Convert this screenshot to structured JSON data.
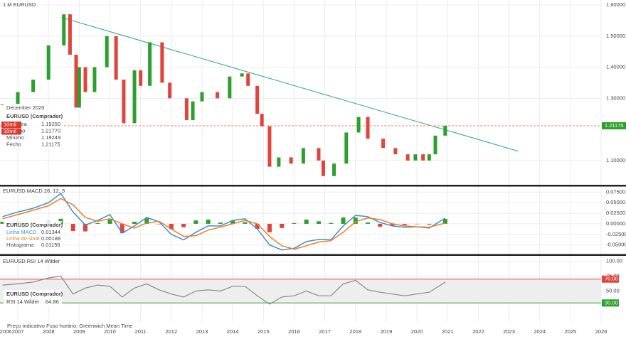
{
  "chart_data": [
    {
      "type": "candlestick",
      "title": "1 M  EURUSD",
      "x": [
        2006.5,
        2007.0,
        2007.5,
        2008.0,
        2008.5,
        2008.7,
        2008.9,
        2009.0,
        2009.2,
        2009.5,
        2009.9,
        2010.2,
        2010.45,
        2010.8,
        2011.0,
        2011.3,
        2011.7,
        2011.95,
        2012.5,
        2012.7,
        2013.0,
        2013.5,
        2013.9,
        2014.3,
        2014.5,
        2014.8,
        2014.95,
        2015.2,
        2015.5,
        2015.9,
        2016.3,
        2016.8,
        2016.95,
        2017.3,
        2017.7,
        2018.1,
        2018.4,
        2018.9,
        2019.3,
        2019.7,
        2019.95,
        2020.2,
        2020.4,
        2020.6,
        2020.92
      ],
      "values": [
        1.28,
        1.32,
        1.36,
        1.47,
        1.57,
        1.44,
        1.27,
        1.4,
        1.32,
        1.4,
        1.5,
        1.36,
        1.22,
        1.39,
        1.34,
        1.48,
        1.35,
        1.3,
        1.23,
        1.29,
        1.32,
        1.3,
        1.37,
        1.38,
        1.34,
        1.25,
        1.21,
        1.08,
        1.11,
        1.09,
        1.14,
        1.1,
        1.05,
        1.09,
        1.19,
        1.24,
        1.17,
        1.14,
        1.12,
        1.1,
        1.12,
        1.1,
        1.12,
        1.18,
        1.2118
      ],
      "up_color": "#2ca02c",
      "down_color": "#e0443c",
      "ylim": [
        1.022,
        1.616
      ],
      "yticks": [
        {
          "value": 1.6,
          "label": "1.60000"
        },
        {
          "value": 1.5,
          "label": "1.50000"
        },
        {
          "value": 1.4,
          "label": "1.40000"
        },
        {
          "value": 1.3,
          "label": "1.30000"
        },
        {
          "value": 1.1,
          "label": "1.10000"
        }
      ],
      "xlim": [
        2006.42,
        2026.81
      ],
      "xticks": [
        2006,
        2007,
        2008,
        2009,
        2010,
        2011,
        2012,
        2013,
        2014,
        2015,
        2016,
        2017,
        2018,
        2019,
        2020,
        2021,
        2022,
        2023,
        2024,
        2025,
        2026
      ],
      "grid": true,
      "trendline": {
        "x": [
          2008.42,
          2023.3
        ],
        "y": [
          1.56,
          1.13
        ],
        "color": "#2aa58c"
      },
      "hline": {
        "value": 1.2117,
        "label": "1.21175",
        "color": "#e8836f"
      },
      "info": {
        "date": "December 2020",
        "name": "EURUSD (Comprador)",
        "rows": [
          [
            "Abertura",
            "1.19250"
          ],
          [
            "Máximo",
            "1.21770"
          ],
          [
            "Mínimo",
            "1.19249"
          ],
          [
            "Fecho",
            "1.21175"
          ]
        ]
      },
      "buttons": [
        "10mil",
        "10mil"
      ],
      "footer": "Preço indicativo  Fuso horário: Greenwich Mean Time"
    },
    {
      "type": "macd",
      "title": "EURUSD  MACD 26, 12, 9",
      "legend_title": "EURUSD (Comprador)",
      "x": [
        2006.5,
        2007.0,
        2007.5,
        2008.0,
        2008.4,
        2008.8,
        2009.2,
        2009.6,
        2010.0,
        2010.4,
        2010.8,
        2011.2,
        2011.6,
        2012.0,
        2012.4,
        2012.8,
        2013.2,
        2013.6,
        2014.0,
        2014.4,
        2014.8,
        2015.2,
        2015.6,
        2016.0,
        2016.4,
        2016.8,
        2017.2,
        2017.6,
        2018.0,
        2018.4,
        2018.8,
        2019.2,
        2019.6,
        2020.0,
        2020.4,
        2020.92
      ],
      "series": [
        {
          "name": "Linha MACD",
          "color": "#3b8fd6",
          "values": [
            0.017,
            0.028,
            0.037,
            0.05,
            0.072,
            0.028,
            -0.003,
            0.008,
            0.022,
            -0.022,
            -0.005,
            0.015,
            0.005,
            -0.025,
            -0.038,
            -0.02,
            -0.005,
            -0.005,
            0.008,
            0.012,
            -0.012,
            -0.05,
            -0.062,
            -0.058,
            -0.042,
            -0.037,
            -0.038,
            -0.005,
            0.02,
            0.017,
            0.003,
            -0.005,
            -0.008,
            -0.007,
            -0.01,
            0.01344
          ]
        },
        {
          "name": "Linha do sinal",
          "color": "#ef7d22",
          "values": [
            0.012,
            0.022,
            0.032,
            0.043,
            0.06,
            0.045,
            0.015,
            0.006,
            0.012,
            0.0,
            -0.01,
            0.002,
            0.006,
            -0.012,
            -0.03,
            -0.028,
            -0.015,
            -0.008,
            0.0,
            0.008,
            0.0,
            -0.03,
            -0.052,
            -0.06,
            -0.052,
            -0.043,
            -0.04,
            -0.02,
            0.005,
            0.014,
            0.01,
            0.0,
            -0.005,
            -0.007,
            -0.008,
            0.00188
          ]
        },
        {
          "name": "Histograma",
          "color": "#2ca02c",
          "negative_color": "#e0443c",
          "values": [
            0.005,
            0.006,
            0.005,
            0.007,
            0.012,
            -0.017,
            -0.018,
            0.002,
            0.01,
            -0.022,
            0.005,
            0.013,
            -0.001,
            -0.013,
            -0.008,
            0.008,
            0.01,
            0.003,
            0.008,
            0.004,
            -0.012,
            -0.02,
            -0.01,
            0.002,
            0.01,
            0.006,
            0.002,
            0.015,
            0.015,
            0.003,
            -0.007,
            -0.005,
            -0.003,
            0.0,
            -0.002,
            0.01156
          ]
        }
      ],
      "ylim": [
        -0.0717,
        0.0883
      ],
      "yticks": [
        {
          "value": 0.075,
          "label": "0.07500"
        },
        {
          "value": 0.05,
          "label": "0.05000"
        },
        {
          "value": 0.025,
          "label": "0.02500"
        },
        {
          "value": 0,
          "label": "0.00000"
        },
        {
          "value": -0.025,
          "label": "-0.02500"
        },
        {
          "value": -0.05,
          "label": "-0.05000"
        }
      ]
    },
    {
      "type": "rsi",
      "title": "EURUSD  RSI 14 Wilder",
      "legend_title": "EURUSD (Comprador)",
      "x": [
        2006.5,
        2007.0,
        2007.5,
        2008.0,
        2008.4,
        2008.8,
        2009.2,
        2009.6,
        2010.0,
        2010.4,
        2010.8,
        2011.2,
        2011.6,
        2012.0,
        2012.4,
        2012.8,
        2013.2,
        2013.6,
        2014.0,
        2014.4,
        2014.8,
        2015.2,
        2015.6,
        2016.0,
        2016.4,
        2016.8,
        2017.2,
        2017.6,
        2018.0,
        2018.4,
        2018.8,
        2019.2,
        2019.6,
        2020.0,
        2020.4,
        2020.92
      ],
      "series": [
        {
          "name": "RSI 14 Wilder",
          "color": "#888888",
          "values": [
            60,
            62,
            65,
            72,
            75,
            45,
            55,
            60,
            58,
            40,
            55,
            62,
            52,
            45,
            40,
            50,
            52,
            50,
            58,
            58,
            42,
            28,
            40,
            42,
            50,
            42,
            42,
            62,
            68,
            52,
            48,
            45,
            42,
            45,
            48,
            64.86
          ]
        }
      ],
      "ylim": [
        -3,
        109
      ],
      "yticks": [
        {
          "value": 100,
          "label": "100.00"
        },
        {
          "value": 75,
          "label": "75.00"
        },
        {
          "value": 50,
          "label": "50.00"
        }
      ],
      "levels": [
        {
          "value": 70,
          "label": "70.00",
          "color": "#e0443c"
        },
        {
          "value": 30,
          "label": "30.00",
          "color": "#2ca02c"
        }
      ]
    }
  ]
}
